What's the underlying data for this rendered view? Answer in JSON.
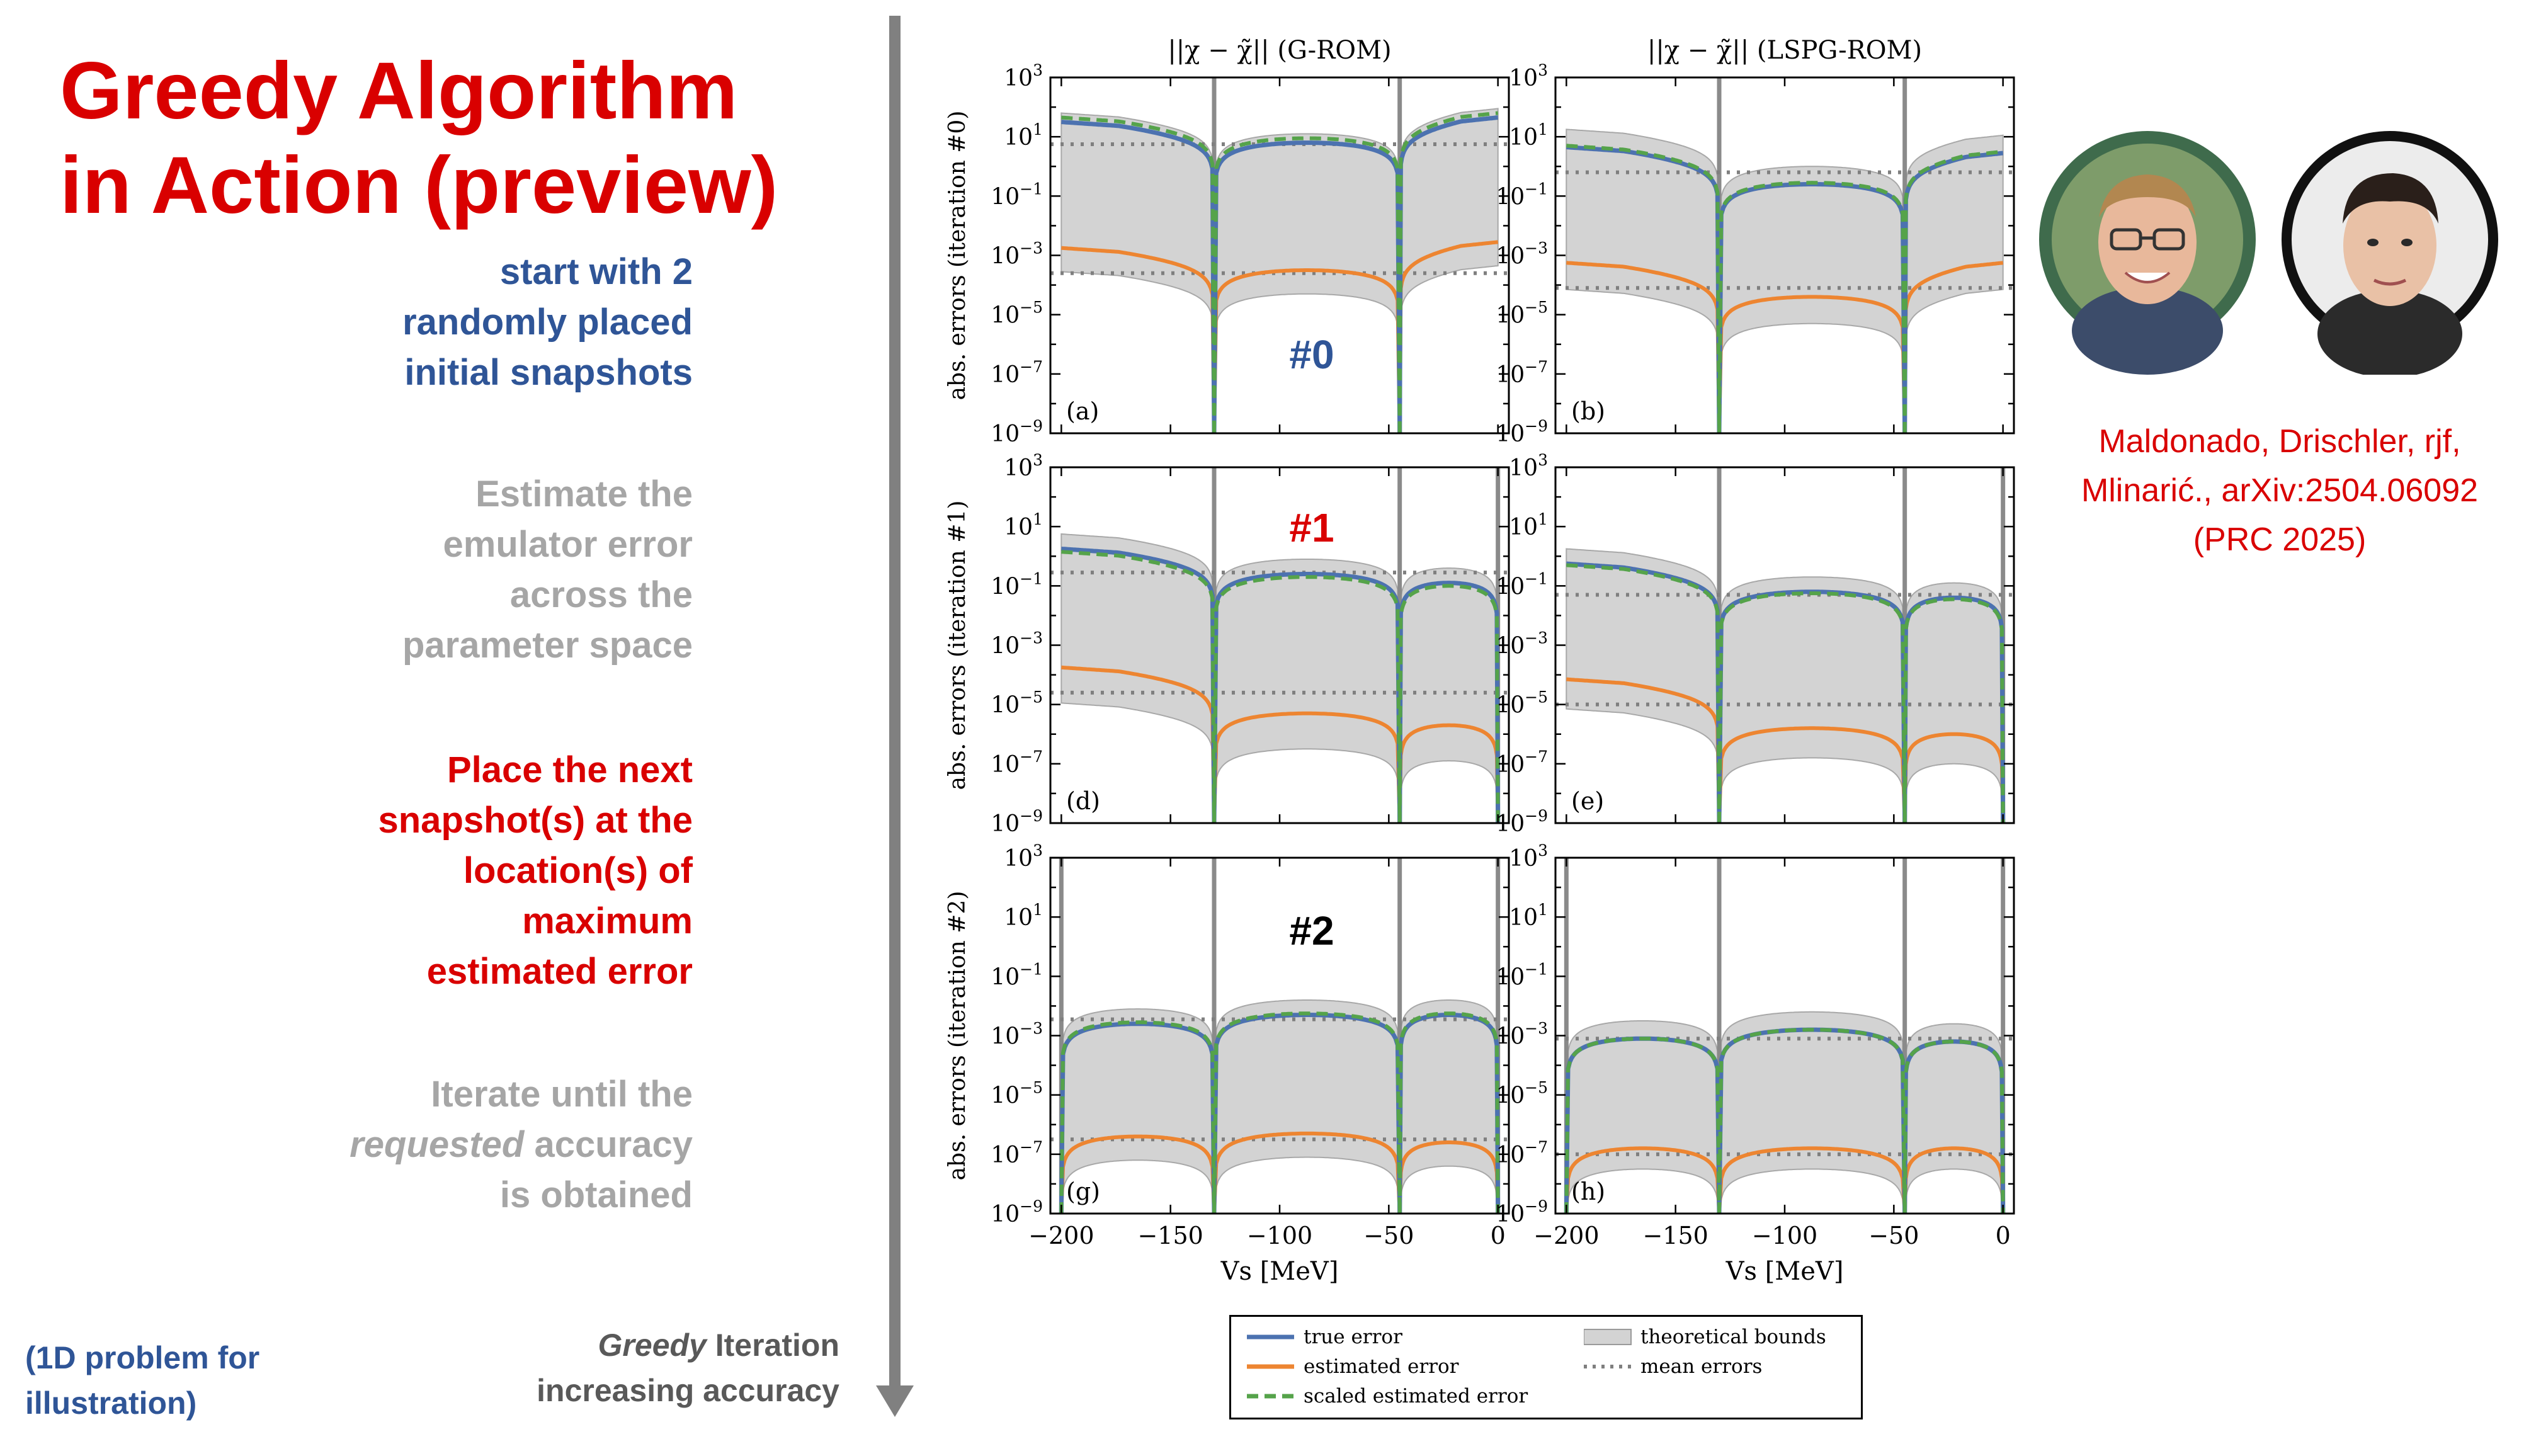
{
  "slide": {
    "title_line1": "Greedy Algorithm",
    "title_line2": "in Action (preview)",
    "steps": [
      {
        "lines": [
          "start with 2",
          "randomly placed",
          "initial snapshots"
        ],
        "color": "#2f5597"
      },
      {
        "lines": [
          "Estimate the",
          "emulator error",
          "across the",
          "parameter space"
        ],
        "color": "#a6a6a6"
      },
      {
        "lines": [
          "Place the next",
          "snapshot(s) at the",
          "location(s) of",
          "maximum",
          "estimated error"
        ],
        "color": "#d90000"
      },
      {
        "line1": "Iterate until the",
        "line2_em": "requested",
        "line2_rest": " accuracy",
        "line3": "is obtained",
        "color": "#a6a6a6"
      }
    ],
    "note": [
      "(1D problem for",
      "illustration)"
    ],
    "arrow_label_em": "Greedy",
    "arrow_label_rest": " Iteration",
    "arrow_label_line2": "increasing accuracy",
    "citation": [
      "Maldonado, Drischler, rjf,",
      "Mlinarić., arXiv:2504.06092",
      "(PRC 2025)"
    ],
    "colors": {
      "true_error": "#4c72b0",
      "estimated_error": "#ed8531",
      "scaled_error": "#55a34a",
      "bounds": "#d3d3d3",
      "mean": "#7f7f7f",
      "snapshot": "#8a8a8a"
    }
  },
  "chart_data": {
    "type": "line",
    "layout": "3 rows x 2 columns grid",
    "col_titles": [
      "||χ − χ̃|| (G-ROM)",
      "||χ − χ̃|| (LSPG-ROM)"
    ],
    "row_ylabels": [
      "abs. errors (iteration #0)",
      "abs. errors (iteration #1)",
      "abs. errors (iteration #2)"
    ],
    "iteration_labels": [
      {
        "text": "#0",
        "color": "#2f5597"
      },
      {
        "text": "#1",
        "color": "#d90000"
      },
      {
        "text": "#2",
        "color": "#000000"
      }
    ],
    "xlabel": "V_s [MeV]",
    "xlim": [
      -205,
      5
    ],
    "x_ticks": [
      -200,
      -150,
      -100,
      -50,
      0
    ],
    "ylog": true,
    "ylim_log10": [
      -9,
      3
    ],
    "y_tick_exponents": [
      -9,
      -7,
      -5,
      -3,
      -1,
      1,
      3
    ],
    "legend": {
      "position": "bottom-center",
      "items": [
        "true error",
        "estimated error",
        "scaled estimated error",
        "theoretical bounds",
        "mean errors"
      ]
    },
    "panels": [
      {
        "label": "(a)",
        "row": 0,
        "col": 0,
        "snapshots": [
          -130,
          -45
        ],
        "true_error_log10_max": [
          1.15,
          0.8,
          1.3
        ],
        "estimated_error_log10_max": [
          -3.1,
          -3.5,
          -2.9
        ],
        "scaled_offset_log10": 0.15,
        "bound_upper_add": 0.3,
        "bound_lower_sub": 0.8,
        "mean_true_log10": 0.75,
        "mean_est_log10": -3.6
      },
      {
        "label": "(b)",
        "row": 0,
        "col": 1,
        "snapshots": [
          -130,
          -45
        ],
        "true_error_log10_max": [
          0.3,
          -0.6,
          0.1
        ],
        "estimated_error_log10_max": [
          -3.6,
          -4.4,
          -3.6
        ],
        "scaled_offset_log10": 0.05,
        "bound_upper_add": 0.6,
        "bound_lower_sub": 0.9,
        "mean_true_log10": -0.2,
        "mean_est_log10": -4.1
      },
      {
        "label": "(d)",
        "row": 1,
        "col": 0,
        "snapshots": [
          -130,
          -45,
          0
        ],
        "true_error_log10_max": [
          -0.1,
          -0.6,
          -0.9
        ],
        "estimated_error_log10_max": [
          -4.1,
          -5.3,
          -5.7
        ],
        "scaled_offset_log10": -0.1,
        "bound_upper_add": 0.5,
        "bound_lower_sub": 1.2,
        "mean_true_log10": -0.55,
        "mean_est_log10": -4.6
      },
      {
        "label": "(e)",
        "row": 1,
        "col": 1,
        "snapshots": [
          -130,
          -45,
          0
        ],
        "true_error_log10_max": [
          -0.6,
          -1.2,
          -1.4
        ],
        "estimated_error_log10_max": [
          -4.5,
          -5.8,
          -6.0
        ],
        "scaled_offset_log10": -0.05,
        "bound_upper_add": 0.5,
        "bound_lower_sub": 1.0,
        "mean_true_log10": -1.3,
        "mean_est_log10": -5.0
      },
      {
        "label": "(g)",
        "row": 2,
        "col": 0,
        "snapshots": [
          -200,
          -130,
          -45,
          0
        ],
        "true_error_log10_max": [
          -2.6,
          -2.3,
          -2.3
        ],
        "estimated_error_log10_max": [
          -6.4,
          -6.3,
          -6.6
        ],
        "scaled_offset_log10": 0.05,
        "bound_upper_add": 0.5,
        "bound_lower_sub": 0.8,
        "mean_true_log10": -2.45,
        "mean_est_log10": -6.5
      },
      {
        "label": "(h)",
        "row": 2,
        "col": 1,
        "snapshots": [
          -200,
          -130,
          -45,
          0
        ],
        "true_error_log10_max": [
          -3.1,
          -2.8,
          -3.2
        ],
        "estimated_error_log10_max": [
          -6.8,
          -6.8,
          -6.8
        ],
        "scaled_offset_log10": 0.0,
        "bound_upper_add": 0.6,
        "bound_lower_sub": 0.7,
        "mean_true_log10": -3.1,
        "mean_est_log10": -7.0
      }
    ]
  }
}
